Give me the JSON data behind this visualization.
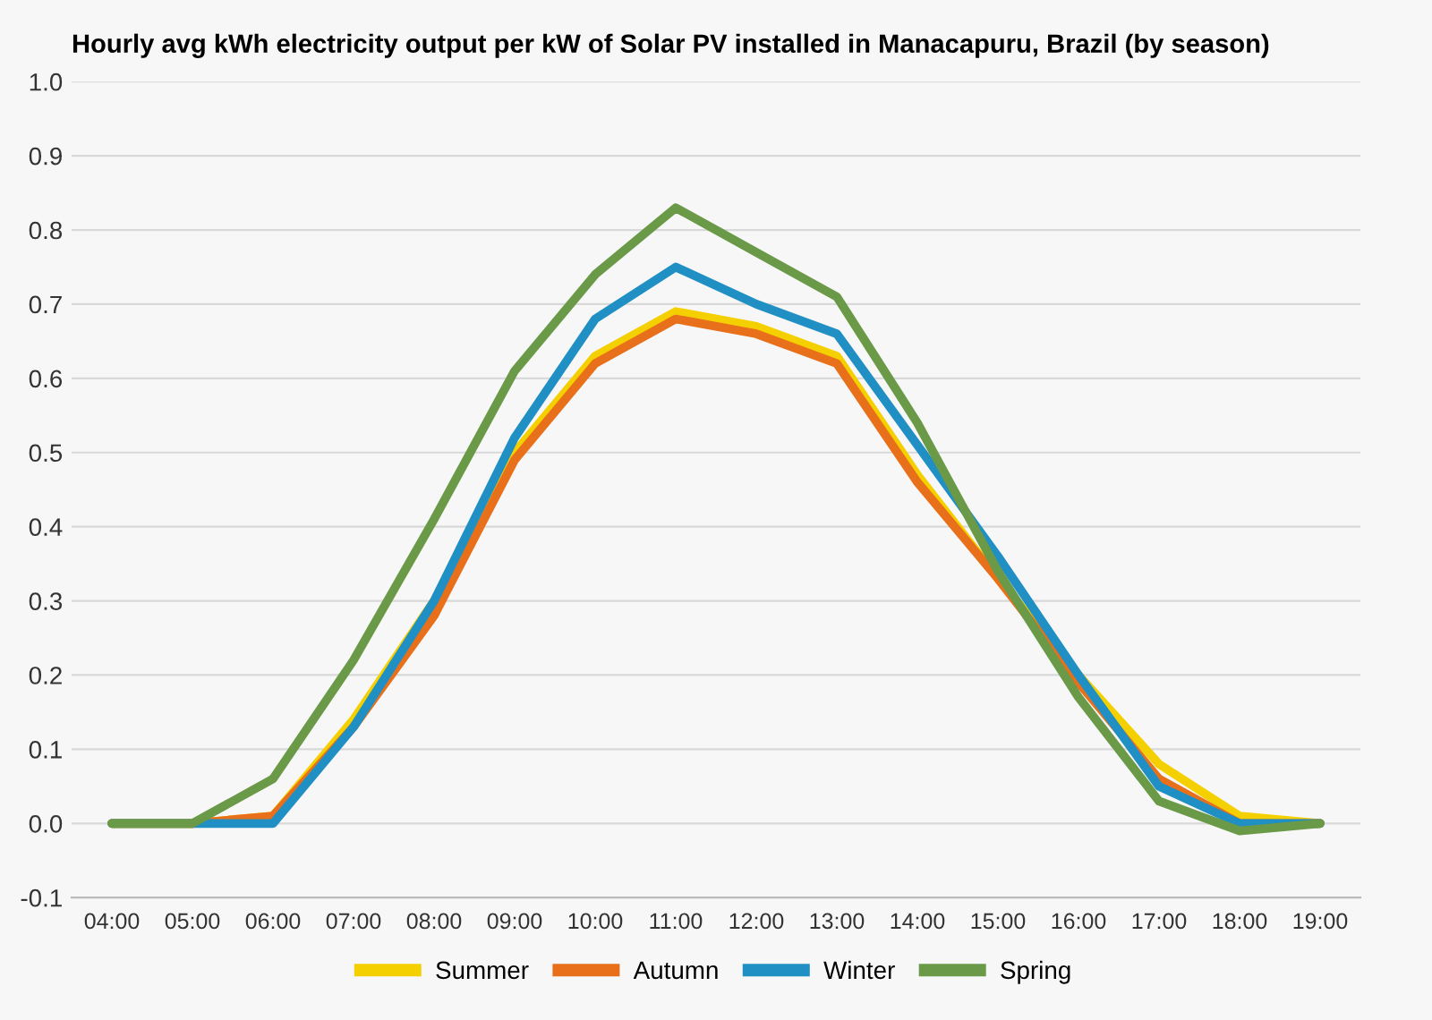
{
  "chart_data": {
    "type": "line",
    "title": "Hourly avg kWh electricity output per kW of Solar PV installed in Manacapuru, Brazil (by season)",
    "x": [
      4,
      5,
      6,
      7,
      8,
      9,
      10,
      11,
      12,
      13,
      14,
      15,
      16,
      17,
      18,
      19
    ],
    "series": [
      {
        "name": "Summer",
        "color": "#f5d000",
        "values": [
          0,
          0,
          0.01,
          0.14,
          0.3,
          0.5,
          0.63,
          0.69,
          0.67,
          0.63,
          0.47,
          0.33,
          0.2,
          0.08,
          0.01,
          0
        ]
      },
      {
        "name": "Autumn",
        "color": "#e8701a",
        "values": [
          0,
          0,
          0.01,
          0.13,
          0.28,
          0.49,
          0.62,
          0.68,
          0.66,
          0.62,
          0.46,
          0.33,
          0.19,
          0.06,
          0,
          0
        ]
      },
      {
        "name": "Winter",
        "color": "#1f8fc4",
        "values": [
          0,
          0,
          0,
          0.13,
          0.3,
          0.52,
          0.68,
          0.75,
          0.7,
          0.66,
          0.51,
          0.36,
          0.2,
          0.05,
          0,
          0
        ]
      },
      {
        "name": "Spring",
        "color": "#6a9a48",
        "values": [
          0,
          0,
          0.06,
          0.22,
          0.41,
          0.61,
          0.74,
          0.83,
          0.77,
          0.71,
          0.54,
          0.34,
          0.17,
          0.03,
          -0.01,
          0
        ]
      }
    ],
    "xlim": [
      3.5,
      19.5
    ],
    "xticks": [
      {
        "value": 4,
        "label": "04:00"
      },
      {
        "value": 5,
        "label": "05:00"
      },
      {
        "value": 6,
        "label": "06:00"
      },
      {
        "value": 7,
        "label": "07:00"
      },
      {
        "value": 8,
        "label": "08:00"
      },
      {
        "value": 9,
        "label": "09:00"
      },
      {
        "value": 10,
        "label": "10:00"
      },
      {
        "value": 11,
        "label": "11:00"
      },
      {
        "value": 12,
        "label": "12:00"
      },
      {
        "value": 13,
        "label": "13:00"
      },
      {
        "value": 14,
        "label": "14:00"
      },
      {
        "value": 15,
        "label": "15:00"
      },
      {
        "value": 16,
        "label": "16:00"
      },
      {
        "value": 17,
        "label": "17:00"
      },
      {
        "value": 18,
        "label": "18:00"
      },
      {
        "value": 19,
        "label": "19:00"
      }
    ],
    "ylim": [
      -0.1,
      1.0
    ],
    "yticks": [
      {
        "value": -0.1,
        "label": "-0.1"
      },
      {
        "value": 0,
        "label": "0.0"
      },
      {
        "value": 0.1,
        "label": "0.1"
      },
      {
        "value": 0.2,
        "label": "0.2"
      },
      {
        "value": 0.3,
        "label": "0.3"
      },
      {
        "value": 0.4,
        "label": "0.4"
      },
      {
        "value": 0.5,
        "label": "0.5"
      },
      {
        "value": 0.6,
        "label": "0.6"
      },
      {
        "value": 0.7,
        "label": "0.7"
      },
      {
        "value": 0.8,
        "label": "0.8"
      },
      {
        "value": 0.9,
        "label": "0.9"
      },
      {
        "value": 1.0,
        "label": "1.0"
      }
    ],
    "grid": "y",
    "legend": "bottom",
    "marker": "none",
    "line_style": "solid"
  }
}
